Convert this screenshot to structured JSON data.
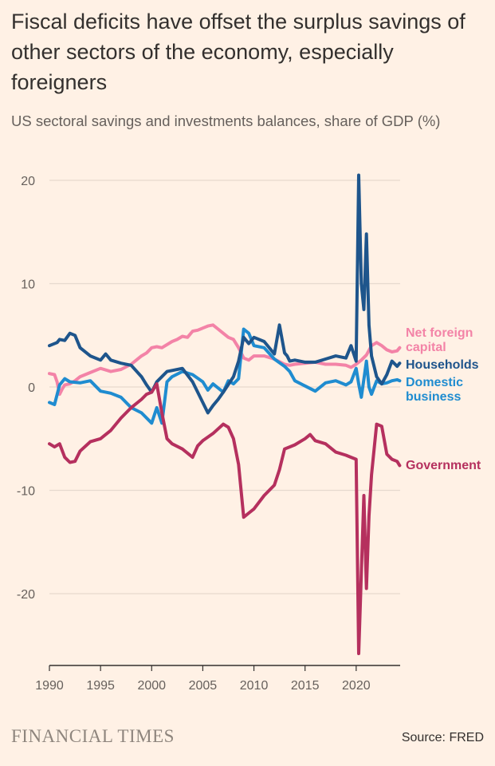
{
  "header": {
    "title": "Fiscal deficits have offset the surplus savings of other sectors of the economy, especially foreigners",
    "subtitle": "US sectoral savings and investments balances, share of GDP (%)"
  },
  "footer": {
    "brand": "FINANCIAL TIMES",
    "source": "Source: FRED"
  },
  "chart_data": {
    "type": "line",
    "title": "Fiscal deficits have offset the surplus savings of other sectors of the economy, especially foreigners",
    "subtitle": "US sectoral savings and investments balances, share of GDP (%)",
    "xlabel": "",
    "ylabel": "",
    "xlim": [
      1990,
      2024.3
    ],
    "ylim": [
      -26.5,
      21.5
    ],
    "xticks": [
      1990,
      1995,
      2000,
      2005,
      2010,
      2015,
      2020
    ],
    "yticks": [
      20,
      10,
      0,
      -10,
      -20
    ],
    "grid": true,
    "legend": "right, direct labels at line ends",
    "series": [
      {
        "name": "Net foreign capital",
        "label": "Net foreign\ncapital",
        "color": "#F383A7",
        "x": [
          1990,
          1990.5,
          1990.75,
          1991,
          1991.25,
          1991.5,
          1992,
          1992.5,
          1993,
          1994,
          1995,
          1996,
          1997,
          1998,
          1998.5,
          1999,
          1999.5,
          2000,
          2000.5,
          2001,
          2002,
          2002.5,
          2003,
          2003.5,
          2004,
          2004.5,
          2005,
          2005.5,
          2006,
          2006.5,
          2007,
          2007.5,
          2008,
          2008.5,
          2009,
          2009.5,
          2010,
          2011,
          2012,
          2013,
          2013.5,
          2014,
          2015,
          2016,
          2017,
          2018,
          2019,
          2019.5,
          2020,
          2020.5,
          2021,
          2021.5,
          2022,
          2022.5,
          2023,
          2023.5,
          2024,
          2024.25
        ],
        "values": [
          1.3,
          1.2,
          0.5,
          -0.7,
          -0.2,
          0.2,
          0.3,
          0.6,
          1.0,
          1.4,
          1.8,
          1.5,
          1.7,
          2.2,
          2.6,
          3.0,
          3.3,
          3.8,
          3.9,
          3.8,
          4.4,
          4.6,
          4.9,
          4.8,
          5.4,
          5.5,
          5.7,
          5.9,
          6.0,
          5.6,
          5.2,
          4.8,
          4.6,
          3.8,
          2.8,
          2.6,
          3.0,
          3.0,
          2.7,
          2.2,
          2.1,
          2.2,
          2.3,
          2.4,
          2.2,
          2.2,
          2.1,
          1.9,
          2.2,
          2.6,
          3.1,
          4.0,
          4.3,
          4.0,
          3.6,
          3.4,
          3.5,
          3.8
        ]
      },
      {
        "name": "Households",
        "label": "Households",
        "color": "#1E558C",
        "x": [
          1990,
          1990.75,
          1991,
          1991.5,
          1992,
          1992.5,
          1993,
          1994,
          1995,
          1995.5,
          1996,
          1997,
          1998,
          1999,
          1999.5,
          2000,
          2000.5,
          2001,
          2001.5,
          2002,
          2003,
          2004,
          2005,
          2005.5,
          2006,
          2006.5,
          2007,
          2008,
          2008.5,
          2009,
          2009.5,
          2010,
          2011,
          2012,
          2012.5,
          2013,
          2013.25,
          2013.5,
          2014,
          2015,
          2016,
          2017,
          2018,
          2019,
          2019.5,
          2020,
          2020.25,
          2020.5,
          2020.75,
          2021,
          2021.25,
          2021.5,
          2022,
          2022.5,
          2023,
          2023.5,
          2024,
          2024.25
        ],
        "values": [
          4.0,
          4.3,
          4.6,
          4.5,
          5.2,
          5.0,
          3.8,
          3.0,
          2.6,
          3.2,
          2.6,
          2.3,
          2.1,
          1.0,
          0.2,
          -0.5,
          0.5,
          1.0,
          1.5,
          1.6,
          1.8,
          0.5,
          -1.5,
          -2.5,
          -1.8,
          -1.2,
          -0.5,
          1.0,
          2.5,
          4.8,
          4.2,
          4.8,
          4.4,
          3.2,
          6.0,
          3.3,
          3.0,
          2.5,
          2.6,
          2.4,
          2.4,
          2.7,
          3.0,
          2.8,
          4.0,
          2.5,
          20.5,
          10.0,
          7.5,
          14.8,
          6.0,
          3.0,
          1.0,
          0.3,
          1.2,
          2.5,
          2.0,
          2.3
        ]
      },
      {
        "name": "Domestic business",
        "label": "Domestic\nbusiness",
        "color": "#1F8CD0",
        "x": [
          1990,
          1990.5,
          1991,
          1991.5,
          1992,
          1993,
          1994,
          1995,
          1996,
          1997,
          1998,
          1999,
          2000,
          2000.5,
          2001,
          2001.5,
          2002,
          2003,
          2004,
          2005,
          2005.5,
          2006,
          2007,
          2007.5,
          2008,
          2008.5,
          2009,
          2009.5,
          2010,
          2011,
          2012,
          2013,
          2013.5,
          2014,
          2015,
          2016,
          2017,
          2018,
          2019,
          2019.5,
          2020,
          2020.25,
          2020.5,
          2021,
          2021.25,
          2021.5,
          2022,
          2022.5,
          2023,
          2023.5,
          2024,
          2024.25
        ],
        "values": [
          -1.5,
          -1.7,
          0.2,
          0.8,
          0.5,
          0.4,
          0.6,
          -0.4,
          -0.6,
          -1.0,
          -2.0,
          -2.5,
          -3.5,
          -2.0,
          -3.5,
          0.5,
          1.0,
          1.5,
          1.2,
          0.5,
          -0.3,
          0.3,
          -0.5,
          0.6,
          0.3,
          0.8,
          5.6,
          5.2,
          4.0,
          3.8,
          2.7,
          2.0,
          1.5,
          0.6,
          0.1,
          -0.4,
          0.4,
          0.6,
          0.2,
          0.5,
          1.8,
          0.3,
          -1.0,
          2.5,
          0.0,
          -0.7,
          0.6,
          0.3,
          0.4,
          0.6,
          0.7,
          0.6
        ]
      },
      {
        "name": "Government",
        "label": "Government",
        "color": "#B5305E",
        "x": [
          1990,
          1990.5,
          1991,
          1991.5,
          1992,
          1992.5,
          1993,
          1994,
          1995,
          1995.5,
          1996,
          1997,
          1998,
          1999,
          1999.5,
          2000,
          2000.5,
          2001,
          2001.5,
          2002,
          2003,
          2004,
          2004.5,
          2005,
          2006,
          2007,
          2007.5,
          2008,
          2008.5,
          2009,
          2009.5,
          2010,
          2011,
          2012,
          2012.5,
          2013,
          2013.5,
          2014,
          2015,
          2015.5,
          2016,
          2017,
          2018,
          2019,
          2019.5,
          2020,
          2020.25,
          2020.5,
          2020.75,
          2021,
          2021.25,
          2021.5,
          2022,
          2022.5,
          2023,
          2023.5,
          2024,
          2024.25
        ],
        "values": [
          -5.5,
          -5.8,
          -5.5,
          -6.8,
          -7.3,
          -7.2,
          -6.2,
          -5.3,
          -5.0,
          -4.6,
          -4.2,
          -3.0,
          -2.0,
          -1.2,
          -0.7,
          -0.5,
          0.3,
          -2.5,
          -5.0,
          -5.5,
          -6.0,
          -6.8,
          -5.7,
          -5.2,
          -4.5,
          -3.6,
          -3.9,
          -5.0,
          -7.5,
          -12.6,
          -12.2,
          -11.8,
          -10.5,
          -9.5,
          -8.0,
          -6.0,
          -5.8,
          -5.6,
          -5.0,
          -4.6,
          -5.2,
          -5.5,
          -6.3,
          -6.6,
          -6.8,
          -7.0,
          -25.8,
          -18.0,
          -10.5,
          -19.5,
          -12.5,
          -8.5,
          -3.6,
          -3.8,
          -6.5,
          -7.0,
          -7.2,
          -7.6
        ]
      }
    ]
  }
}
